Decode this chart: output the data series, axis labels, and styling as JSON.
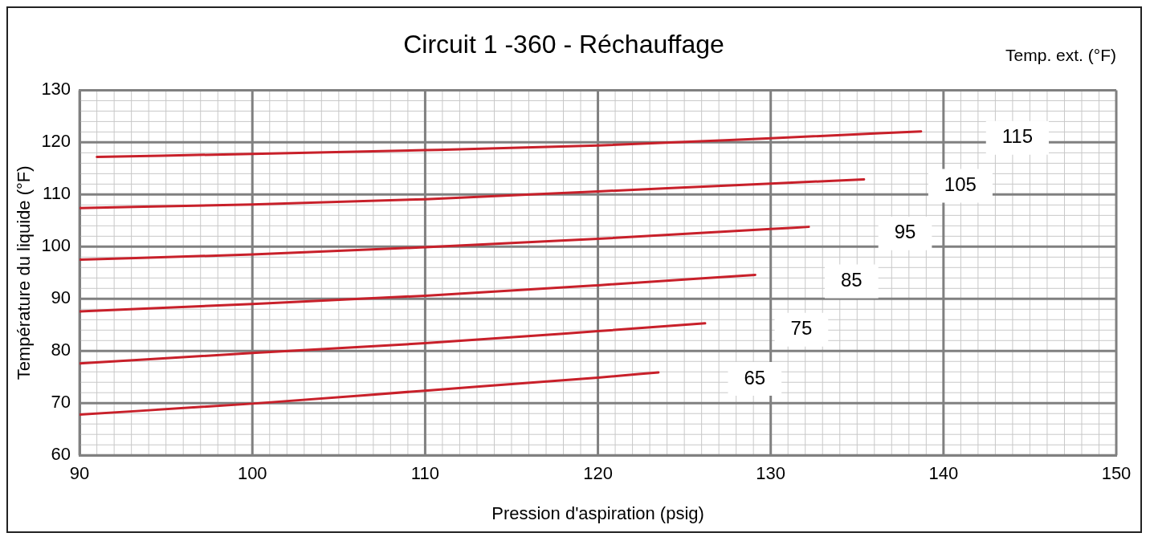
{
  "chart_data": {
    "type": "line",
    "title": "Circuit 1 -360 - Réchauffage",
    "xlabel": "Pression d'aspiration (psig)",
    "ylabel": "Température du liquide (°F)",
    "legend_title": "Temp. ext. (°F)",
    "xlim": [
      90,
      150
    ],
    "xticks": [
      90,
      100,
      110,
      120,
      130,
      140,
      150
    ],
    "ylim": [
      60,
      130
    ],
    "yticks": [
      60,
      70,
      80,
      90,
      100,
      110,
      120,
      130
    ],
    "grid": true,
    "legend": false,
    "marker": "none",
    "line_style": "solid",
    "series": [
      {
        "name": "115",
        "color": "#c8202a",
        "x": [
          91,
          100,
          110,
          120,
          130,
          138.7
        ],
        "values": [
          117.2,
          117.8,
          118.5,
          119.4,
          120.8,
          122.1
        ]
      },
      {
        "name": "105",
        "color": "#c8202a",
        "x": [
          90,
          100,
          110,
          120,
          130,
          135.4
        ],
        "values": [
          107.4,
          108.1,
          109.1,
          110.6,
          112.1,
          112.9
        ]
      },
      {
        "name": "95",
        "color": "#c8202a",
        "x": [
          90,
          100,
          110,
          120,
          130,
          132.2
        ],
        "values": [
          97.5,
          98.5,
          99.9,
          101.5,
          103.4,
          103.8
        ]
      },
      {
        "name": "85",
        "color": "#c8202a",
        "x": [
          90,
          100,
          110,
          120,
          129.1
        ],
        "values": [
          87.6,
          89.0,
          90.6,
          92.6,
          94.6
        ]
      },
      {
        "name": "75",
        "color": "#c8202a",
        "x": [
          90,
          100,
          110,
          120,
          126.2
        ],
        "values": [
          77.6,
          79.6,
          81.5,
          83.8,
          85.3
        ]
      },
      {
        "name": "65",
        "color": "#c8202a",
        "x": [
          90,
          100,
          110,
          120,
          123.5
        ],
        "values": [
          67.8,
          69.9,
          72.4,
          74.9,
          75.9
        ]
      }
    ]
  }
}
